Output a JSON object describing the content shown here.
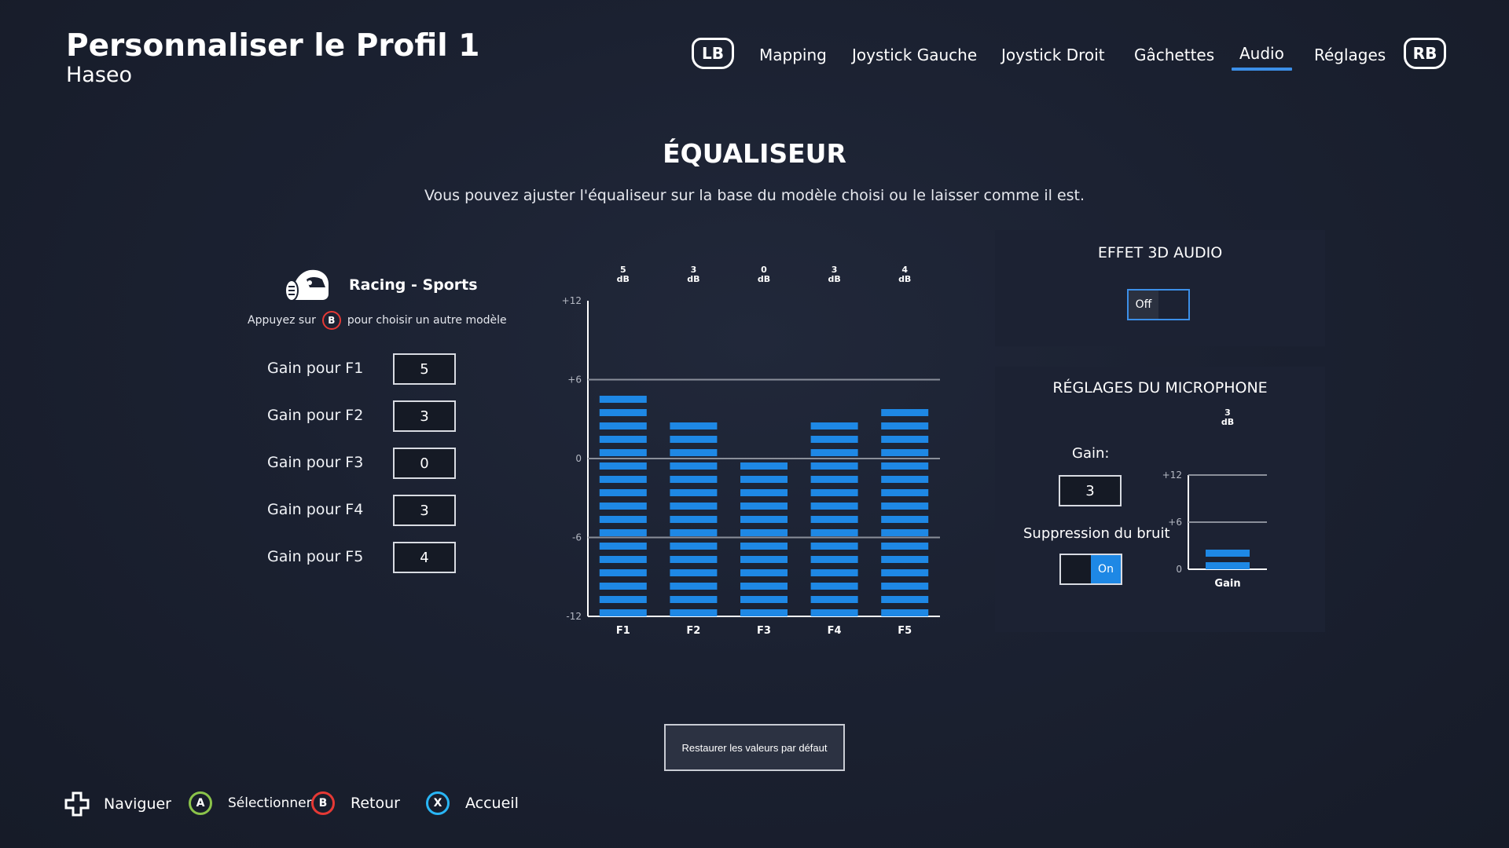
{
  "header": {
    "title": "Personnaliser le Profil 1",
    "subtitle": "Haseo",
    "left_bumper": "LB",
    "right_bumper": "RB",
    "tabs": [
      {
        "label": "Mapping"
      },
      {
        "label": "Joystick Gauche"
      },
      {
        "label": "Joystick Droit"
      },
      {
        "label": "Gâchettes"
      },
      {
        "label": "Audio"
      },
      {
        "label": "Réglages"
      }
    ],
    "active_tab": "Audio"
  },
  "equalizer": {
    "title": "ÉQUALISEUR",
    "description": "Vous pouvez ajuster l'équaliseur sur la base du modèle choisi ou le laisser comme il est.",
    "preset": {
      "name": "Racing - Sports",
      "hint_before": "Appuyez sur",
      "hint_button": "B",
      "hint_after": "pour choisir un autre modèle"
    },
    "gains": [
      {
        "label": "Gain pour F1",
        "value": "5"
      },
      {
        "label": "Gain pour F2",
        "value": "3"
      },
      {
        "label": "Gain pour F3",
        "value": "0"
      },
      {
        "label": "Gain pour F4",
        "value": "3"
      },
      {
        "label": "Gain pour F5",
        "value": "4"
      }
    ]
  },
  "chart_data": [
    {
      "type": "bar",
      "categories": [
        "F1",
        "F2",
        "F3",
        "F4",
        "F5"
      ],
      "values": [
        5,
        3,
        0,
        3,
        4
      ],
      "value_unit": "dB",
      "ylim": [
        -12,
        12
      ],
      "yticks": [
        "+12",
        "+6",
        "0",
        "-6",
        "-12"
      ],
      "gridlines": [
        6,
        0,
        -6
      ],
      "color": "#1e88e5"
    },
    {
      "type": "bar",
      "categories": [
        "Gain"
      ],
      "values": [
        3
      ],
      "value_unit": "dB",
      "ylim": [
        0,
        12
      ],
      "yticks": [
        "+12",
        "+6",
        "0"
      ],
      "gridlines": [
        12,
        6
      ],
      "color": "#1e88e5"
    }
  ],
  "audio3d": {
    "title": "EFFET 3D AUDIO",
    "off_label": "Off",
    "state": "off"
  },
  "microphone": {
    "title": "RÉGLAGES DU MICROPHONE",
    "gain_label": "Gain:",
    "gain_value": "3",
    "noise_label": "Suppression du bruit",
    "noise_on_label": "On",
    "noise_state": "on"
  },
  "restore_label": "Restaurer les valeurs par défaut",
  "footer": [
    {
      "button": "",
      "label": "Naviguer"
    },
    {
      "button": "A",
      "label": "Sélectionner"
    },
    {
      "button": "B",
      "label": "Retour"
    },
    {
      "button": "X",
      "label": "Accueil"
    }
  ],
  "colors": {
    "accent": "#3c8fe8",
    "bar": "#1e88e5",
    "button_a": "#8bc34a",
    "button_b": "#e53935",
    "button_x": "#29b6f6"
  }
}
